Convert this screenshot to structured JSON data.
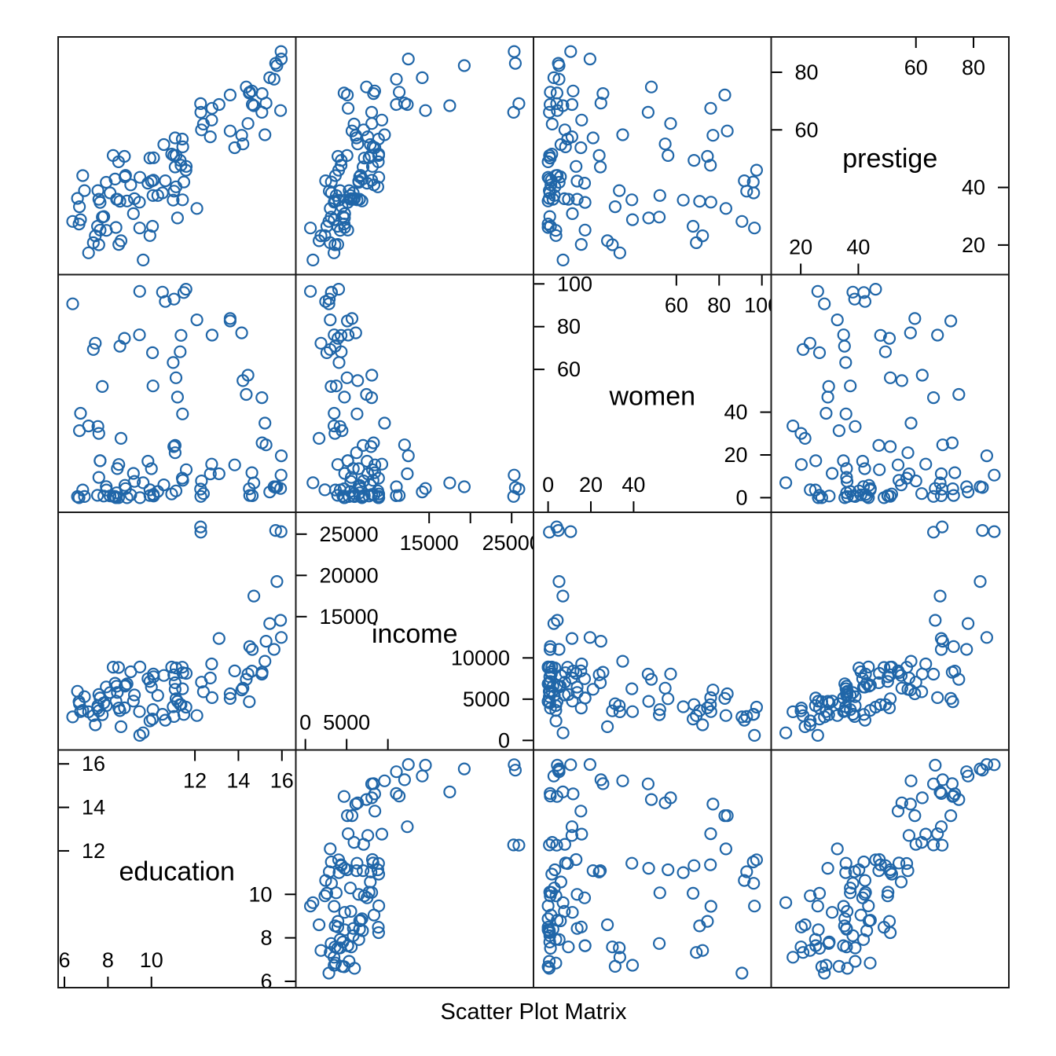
{
  "chart_data": {
    "type": "scatter",
    "subtype": "scatter-plot-matrix",
    "title": "Scatter Plot Matrix",
    "point_color": "#2066a8",
    "border_color": "#1a1a1a",
    "grid": false,
    "legend": null,
    "variables": [
      {
        "name": "education",
        "label": "education",
        "limits": [
          5.71,
          16.64
        ],
        "ticks": {
          "left": [
            [
              16,
              "16"
            ],
            [
              14,
              "14"
            ],
            [
              12,
              "12"
            ]
          ],
          "right": [
            [
              10,
              "10"
            ],
            [
              8,
              "8"
            ],
            [
              6,
              "6"
            ]
          ],
          "top": [
            [
              12,
              "12"
            ],
            [
              14,
              "14"
            ],
            [
              16,
              "16"
            ]
          ],
          "bottom": [
            [
              6,
              "6"
            ],
            [
              8,
              "8"
            ],
            [
              10,
              "10"
            ]
          ]
        }
      },
      {
        "name": "income",
        "label": "income",
        "limits": [
          -1158,
          27648
        ],
        "ticks": {
          "left": [
            [
              25000,
              "25000"
            ],
            [
              20000,
              "20000"
            ],
            [
              15000,
              "15000"
            ]
          ],
          "right": [
            [
              10000,
              "10000"
            ],
            [
              5000,
              "5000"
            ],
            [
              0,
              "0"
            ]
          ],
          "top": [
            [
              15000,
              "15000"
            ],
            [
              20000,
              ""
            ],
            [
              25000,
              "25000"
            ]
          ],
          "bottom": [
            [
              0,
              "0"
            ],
            [
              5000,
              "5000"
            ],
            [
              10000,
              ""
            ]
          ]
        }
      },
      {
        "name": "women",
        "label": "women",
        "limits": [
          -6.83,
          104.34
        ],
        "ticks": {
          "left": [
            [
              100,
              "100"
            ],
            [
              80,
              "80"
            ],
            [
              60,
              "60"
            ]
          ],
          "right": [
            [
              40,
              "40"
            ],
            [
              20,
              "20"
            ],
            [
              0,
              "0"
            ]
          ],
          "top": [
            [
              60,
              "60"
            ],
            [
              80,
              "80"
            ],
            [
              100,
              "100"
            ]
          ],
          "bottom": [
            [
              0,
              "0"
            ],
            [
              20,
              "20"
            ],
            [
              40,
              "40"
            ]
          ]
        }
      },
      {
        "name": "prestige",
        "label": "prestige",
        "limits": [
          9.73,
          92.27
        ],
        "ticks": {
          "left": [
            [
              80,
              "80"
            ],
            [
              60,
              "60"
            ]
          ],
          "right": [
            [
              40,
              "40"
            ],
            [
              20,
              "20"
            ]
          ],
          "top": [
            [
              60,
              "60"
            ],
            [
              80,
              "80"
            ]
          ],
          "bottom": [
            [
              20,
              "20"
            ],
            [
              40,
              "40"
            ]
          ]
        }
      }
    ],
    "observations": {
      "columns": [
        "education",
        "income",
        "women",
        "prestige"
      ],
      "rows": [
        [
          13.11,
          12351,
          11.16,
          68.8
        ],
        [
          12.26,
          25879,
          4.02,
          69.1
        ],
        [
          12.77,
          9271,
          15.7,
          63.4
        ],
        [
          11.42,
          8865,
          9.11,
          56.8
        ],
        [
          14.62,
          8403,
          11.68,
          73.5
        ],
        [
          15.64,
          11030,
          5.13,
          77.6
        ],
        [
          15.09,
          8258,
          25.65,
          72.6
        ],
        [
          15.44,
          14163,
          2.69,
          78.1
        ],
        [
          14.52,
          11377,
          1.03,
          73.1
        ],
        [
          14.64,
          11023,
          0.94,
          68.8
        ],
        [
          12.39,
          5902,
          1.91,
          62.0
        ],
        [
          12.3,
          7059,
          7.83,
          60.0
        ],
        [
          13.83,
          8425,
          15.33,
          53.8
        ],
        [
          14.44,
          8049,
          57.31,
          62.2
        ],
        [
          14.36,
          7405,
          48.28,
          74.9
        ],
        [
          14.21,
          6336,
          54.77,
          55.1
        ],
        [
          15.77,
          19263,
          5.13,
          82.3
        ],
        [
          14.15,
          6112,
          77.1,
          58.1
        ],
        [
          15.22,
          9593,
          34.89,
          58.3
        ],
        [
          14.5,
          4686,
          4.14,
          72.8
        ],
        [
          15.97,
          12480,
          19.59,
          84.6
        ],
        [
          13.62,
          5648,
          83.78,
          59.6
        ],
        [
          15.08,
          8034,
          46.8,
          66.1
        ],
        [
          15.96,
          25308,
          10.56,
          87.2
        ],
        [
          15.94,
          14558,
          4.32,
          66.7
        ],
        [
          14.71,
          17498,
          6.91,
          68.4
        ],
        [
          15.71,
          25449,
          4.78,
          83.1
        ],
        [
          15.27,
          12017,
          24.71,
          69.3
        ],
        [
          13.62,
          5092,
          82.66,
          72.1
        ],
        [
          9.45,
          3485,
          76.14,
          34.9
        ],
        [
          12.79,
          5180,
          76.04,
          67.5
        ],
        [
          11.09,
          6197,
          21.03,
          57.2
        ],
        [
          12.71,
          7562,
          11.15,
          57.6
        ],
        [
          11.44,
          8206,
          8.13,
          54.1
        ],
        [
          11.59,
          4036,
          97.51,
          46.0
        ],
        [
          11.49,
          3148,
          95.97,
          41.9
        ],
        [
          11.32,
          4348,
          68.24,
          49.4
        ],
        [
          10.64,
          2448,
          91.76,
          42.3
        ],
        [
          11.36,
          4330,
          75.92,
          47.7
        ],
        [
          9.17,
          4761,
          11.37,
          30.9
        ],
        [
          12.09,
          3016,
          83.19,
          32.7
        ],
        [
          11.04,
          2901,
          92.86,
          38.7
        ],
        [
          9.22,
          5511,
          7.62,
          36.1
        ],
        [
          10.07,
          3739,
          52.27,
          37.2
        ],
        [
          10.51,
          3161,
          96.14,
          38.1
        ],
        [
          11.2,
          4741,
          47.06,
          29.4
        ],
        [
          11.13,
          5052,
          56.1,
          51.1
        ],
        [
          11.43,
          6259,
          39.17,
          35.7
        ],
        [
          11.0,
          4075,
          63.23,
          35.6
        ],
        [
          9.84,
          7482,
          17.04,
          41.5
        ],
        [
          11.13,
          8780,
          3.16,
          40.2
        ],
        [
          10.05,
          2594,
          67.82,
          26.5
        ],
        [
          9.62,
          918,
          7.0,
          14.8
        ],
        [
          9.93,
          2370,
          3.69,
          23.3
        ],
        [
          11.6,
          8131,
          13.09,
          47.3
        ],
        [
          11.09,
          6992,
          24.44,
          47.1
        ],
        [
          11.03,
          7956,
          23.88,
          51.1
        ],
        [
          9.47,
          8895,
          0.0,
          43.5
        ],
        [
          10.93,
          8891,
          1.75,
          51.6
        ],
        [
          7.74,
          3116,
          52.0,
          29.7
        ],
        [
          8.5,
          3930,
          15.51,
          20.2
        ],
        [
          10.57,
          7869,
          6.01,
          54.9
        ],
        [
          9.46,
          611,
          96.53,
          25.9
        ],
        [
          7.33,
          3000,
          69.31,
          20.8
        ],
        [
          7.11,
          3472,
          33.57,
          17.3
        ],
        [
          7.58,
          3582,
          30.08,
          20.1
        ],
        [
          6.84,
          3643,
          3.6,
          44.1
        ],
        [
          8.6,
          1656,
          27.75,
          21.5
        ],
        [
          8.88,
          6860,
          0.0,
          35.3
        ],
        [
          7.54,
          4199,
          33.3,
          38.9
        ],
        [
          7.64,
          5134,
          17.26,
          25.2
        ],
        [
          7.64,
          5134,
          17.26,
          34.8
        ],
        [
          7.42,
          1890,
          72.24,
          23.2
        ],
        [
          6.69,
          4443,
          31.36,
          33.3
        ],
        [
          6.74,
          3485,
          39.48,
          28.8
        ],
        [
          10.09,
          8043,
          1.5,
          42.5
        ],
        [
          8.81,
          6686,
          4.28,
          44.2
        ],
        [
          8.4,
          6565,
          2.3,
          35.9
        ],
        [
          7.92,
          6477,
          5.17,
          41.8
        ],
        [
          8.43,
          5811,
          13.62,
          35.9
        ],
        [
          8.78,
          6573,
          5.78,
          43.7
        ],
        [
          8.76,
          3942,
          74.54,
          50.8
        ],
        [
          10.29,
          5449,
          2.92,
          37.2
        ],
        [
          6.38,
          2847,
          90.67,
          28.2
        ],
        [
          8.1,
          5795,
          0.81,
          38.1
        ],
        [
          10.1,
          7716,
          0.78,
          50.3
        ],
        [
          6.67,
          4696,
          0.0,
          27.3
        ],
        [
          9.05,
          8316,
          1.34,
          40.9
        ],
        [
          9.93,
          7147,
          0.99,
          50.2
        ],
        [
          8.24,
          8880,
          0.65,
          51.1
        ],
        [
          6.92,
          5299,
          0.56,
          38.9
        ],
        [
          6.6,
          5959,
          0.52,
          36.2
        ],
        [
          7.81,
          4549,
          0.76,
          29.9
        ],
        [
          8.33,
          6928,
          0.61,
          42.9
        ],
        [
          7.52,
          3910,
          1.09,
          26.5
        ],
        [
          12.27,
          25239,
          0.58,
          66.1
        ],
        [
          8.49,
          8845,
          0.0,
          48.9
        ],
        [
          7.58,
          5562,
          9.47,
          35.9
        ],
        [
          7.93,
          4224,
          3.59,
          25.1
        ],
        [
          8.37,
          4753,
          0.0,
          26.1
        ],
        [
          10.0,
          6462,
          13.58,
          42.2
        ],
        [
          8.55,
          3617,
          70.87,
          35.2
        ]
      ]
    }
  }
}
